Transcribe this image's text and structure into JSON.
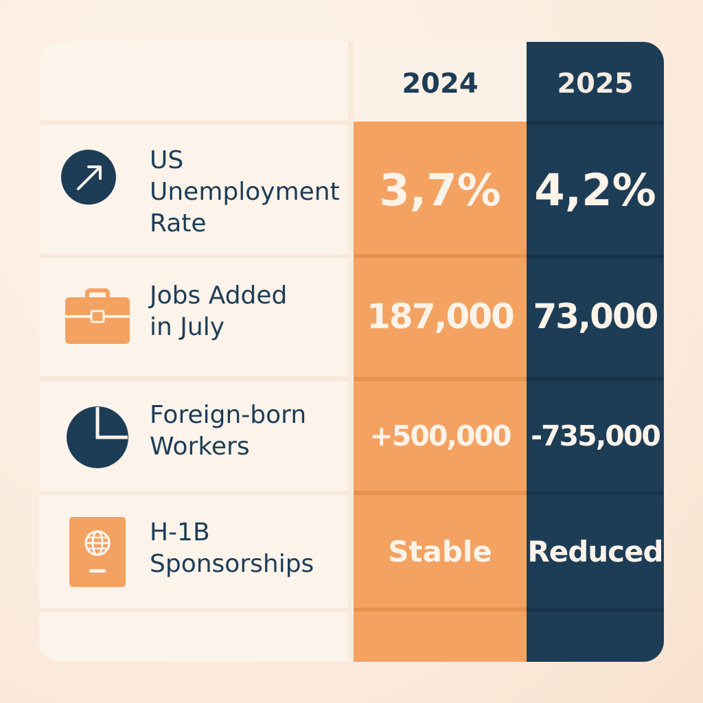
{
  "chart_data": {
    "type": "table",
    "columns": [
      "",
      "2024",
      "2025"
    ],
    "rows": [
      {
        "icon": "trending-up-arrow-icon",
        "label_lines": [
          "US",
          "Unemployment",
          "Rate"
        ],
        "v2024": "3,7%",
        "v2025": "4,2%"
      },
      {
        "icon": "briefcase-icon",
        "label_lines": [
          "Jobs Added",
          "in July"
        ],
        "v2024": "187,000",
        "v2025": "73,000"
      },
      {
        "icon": "pie-chart-icon",
        "label_lines": [
          "Foreign-born",
          "Workers"
        ],
        "v2024": "+500,000",
        "v2025": "-735,000"
      },
      {
        "icon": "passport-icon",
        "label_lines": [
          "H-1B",
          "Sponsorships"
        ],
        "v2024": "Stable",
        "v2025": "Reduced"
      }
    ]
  },
  "colors": {
    "orange": "#f4a261",
    "navy": "#1d3d57",
    "cream": "#fcf3ea"
  }
}
